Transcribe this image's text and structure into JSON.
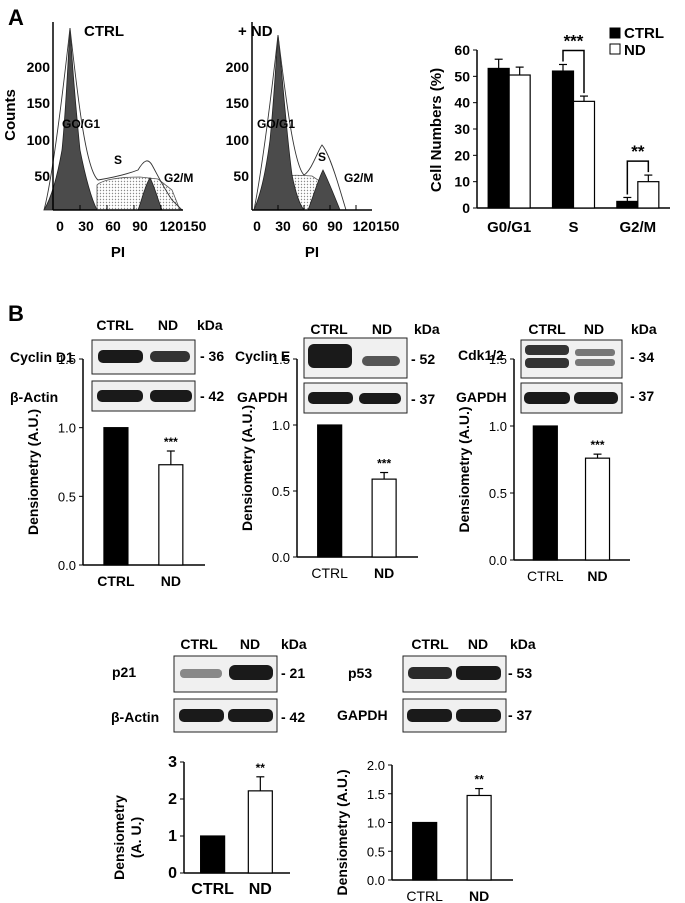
{
  "panel_labels": {
    "a": "A",
    "b": "B"
  },
  "flow": [
    {
      "title": "CTRL",
      "xlabel": "PI",
      "ylabel": "Counts",
      "xticks": [
        "0",
        "30",
        "60",
        "90",
        "120150"
      ],
      "yticks": [
        "0",
        "50",
        "100",
        "150",
        "200"
      ],
      "phase_labels": [
        "GO/G1",
        "S",
        "G2/M"
      ]
    },
    {
      "title": "+ ND",
      "xlabel": "PI",
      "ylabel": "",
      "xticks": [
        "0",
        "30",
        "60",
        "90",
        "120150"
      ],
      "yticks": [
        "0",
        "50",
        "100",
        "150",
        "200"
      ],
      "phase_labels": [
        "GO/G1",
        "S",
        "G2/M"
      ]
    }
  ],
  "blots": [
    {
      "lanes": [
        "CTRL",
        "ND"
      ],
      "kda": "kDa",
      "rows": [
        {
          "label": "Cyclin D1",
          "mw": "- 36"
        },
        {
          "label": "β-Actin",
          "mw": "- 42"
        }
      ]
    },
    {
      "lanes": [
        "CTRL",
        "ND"
      ],
      "kda": "kDa",
      "rows": [
        {
          "label": "Cyclin E",
          "mw": "- 52"
        },
        {
          "label": "GAPDH",
          "mw": "- 37"
        }
      ]
    },
    {
      "lanes": [
        "CTRL",
        "ND"
      ],
      "kda": "kDa",
      "rows": [
        {
          "label": "Cdk1/2",
          "mw": "- 34"
        },
        {
          "label": "GAPDH",
          "mw": "- 37"
        }
      ]
    },
    {
      "lanes": [
        "CTRL",
        "ND"
      ],
      "kda": "kDa",
      "rows": [
        {
          "label": "p21",
          "mw": "- 21"
        },
        {
          "label": "β-Actin",
          "mw": "- 42"
        }
      ]
    },
    {
      "lanes": [
        "CTRL",
        "ND"
      ],
      "kda": "kDa",
      "rows": [
        {
          "label": "p53",
          "mw": "- 53"
        },
        {
          "label": "GAPDH",
          "mw": "- 37"
        }
      ]
    }
  ],
  "chart_data": [
    {
      "type": "bar",
      "title": "",
      "xlabel": "",
      "ylabel": "Cell Numbers (%)",
      "categories": [
        "G0/G1",
        "S",
        "G2/M"
      ],
      "series": [
        {
          "name": "CTRL",
          "values": [
            53,
            52,
            2.5
          ],
          "errors": [
            3.5,
            2.5,
            1.5
          ],
          "color": "#000000"
        },
        {
          "name": "ND",
          "values": [
            50.5,
            40.5,
            10
          ],
          "errors": [
            3,
            2,
            2.5
          ],
          "color": "#ffffff"
        }
      ],
      "ylim": [
        0,
        60
      ],
      "yticks": [
        "0",
        "10",
        "20",
        "30",
        "40",
        "50",
        "60"
      ],
      "legend": "top-right",
      "significance": [
        {
          "category": "S",
          "text": "***"
        },
        {
          "category": "G2/M",
          "text": "**"
        }
      ]
    },
    {
      "type": "bar",
      "ylabel": "Densiometry (A.U.)",
      "categories": [
        "CTRL",
        "ND"
      ],
      "values": [
        1.0,
        0.73
      ],
      "errors": [
        0,
        0.1
      ],
      "colors": [
        "#000000",
        "#ffffff"
      ],
      "ylim": [
        0,
        1.5
      ],
      "yticks": [
        "0.0",
        "0.5",
        "1.0",
        "1.5"
      ],
      "significance": "***"
    },
    {
      "type": "bar",
      "ylabel": "Densiometry (A.U.)",
      "categories": [
        "CTRL",
        "ND"
      ],
      "values": [
        1.0,
        0.59
      ],
      "errors": [
        0,
        0.05
      ],
      "colors": [
        "#000000",
        "#ffffff"
      ],
      "ylim": [
        0,
        1.5
      ],
      "yticks": [
        "0.0",
        "0.5",
        "1.0",
        "1.5"
      ],
      "significance": "***"
    },
    {
      "type": "bar",
      "ylabel": "Densiometry (A.U.)",
      "categories": [
        "CTRL",
        "ND"
      ],
      "values": [
        1.0,
        0.76
      ],
      "errors": [
        0,
        0.03
      ],
      "colors": [
        "#000000",
        "#ffffff"
      ],
      "ylim": [
        0,
        1.5
      ],
      "yticks": [
        "0.0",
        "0.5",
        "1.0",
        "1.5"
      ],
      "significance": "***"
    },
    {
      "type": "bar",
      "ylabel": "Densiometry (A. U.)",
      "categories": [
        "CTRL",
        "ND"
      ],
      "values": [
        1.0,
        2.22
      ],
      "errors": [
        0,
        0.38
      ],
      "colors": [
        "#000000",
        "#ffffff"
      ],
      "ylim": [
        0,
        3
      ],
      "yticks": [
        "0",
        "1",
        "2",
        "3"
      ],
      "significance": "**"
    },
    {
      "type": "bar",
      "ylabel": "Densiometry (A.U.)",
      "categories": [
        "CTRL",
        "ND"
      ],
      "values": [
        1.0,
        1.47
      ],
      "errors": [
        0,
        0.12
      ],
      "colors": [
        "#000000",
        "#ffffff"
      ],
      "ylim": [
        0,
        2.0
      ],
      "yticks": [
        "0.0",
        "0.5",
        "1.0",
        "1.5",
        "2.0"
      ],
      "significance": "**"
    }
  ]
}
